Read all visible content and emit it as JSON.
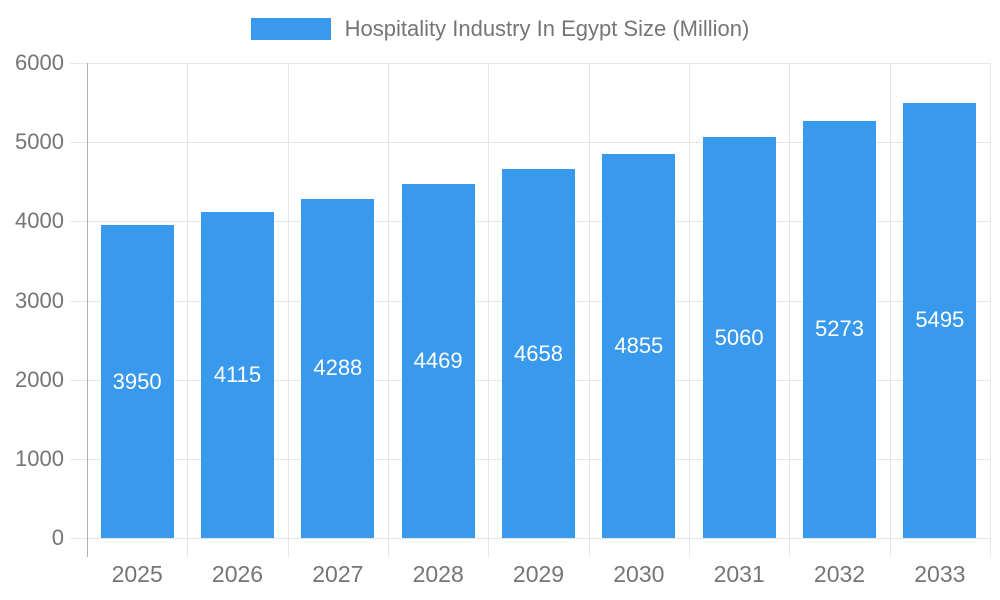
{
  "legend": {
    "label": "Hospitality Industry In Egypt Size (Million)"
  },
  "chart_data": {
    "type": "bar",
    "title": "Hospitality Industry In Egypt Size (Million)",
    "series_name": "Hospitality Industry In Egypt Size (Million)",
    "categories": [
      "2025",
      "2026",
      "2027",
      "2028",
      "2029",
      "2030",
      "2031",
      "2032",
      "2033"
    ],
    "values": [
      3950,
      4115,
      4288,
      4469,
      4658,
      4855,
      5060,
      5273,
      5495
    ],
    "xlabel": "",
    "ylabel": "",
    "ylim": [
      0,
      6000
    ],
    "yticks": [
      0,
      1000,
      2000,
      3000,
      4000,
      5000,
      6000
    ],
    "grid": true,
    "legend_position": "top",
    "value_labels_shown": true
  },
  "colors": {
    "bar": "#3999EC",
    "axis_text": "#757575",
    "grid_line": "#e6e6e6",
    "axis_line": "#b0b0b0",
    "value_label": "#ffffff",
    "background": "#ffffff"
  }
}
